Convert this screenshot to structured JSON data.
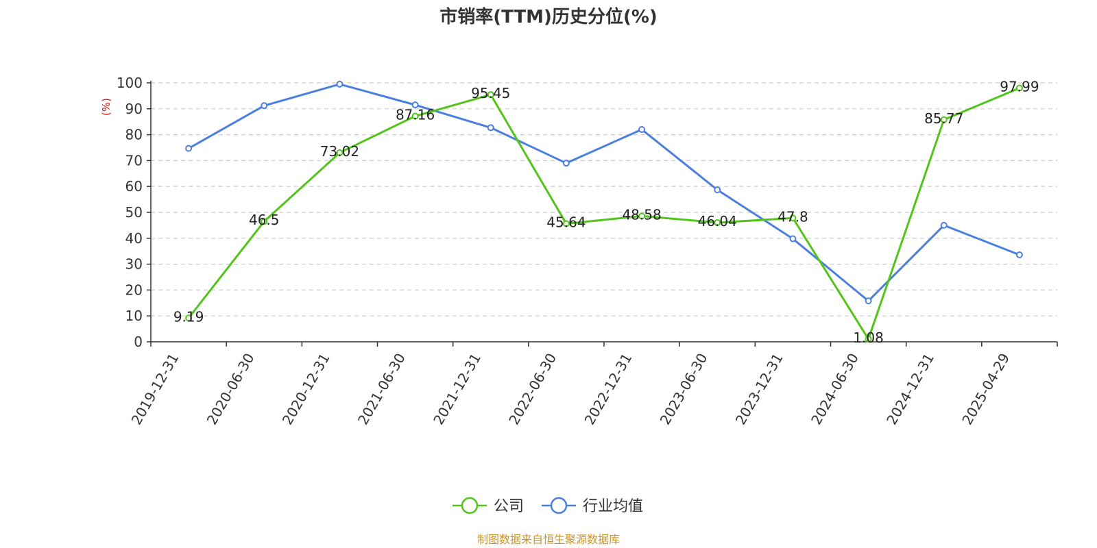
{
  "chart_data": {
    "type": "line",
    "title": "市销率(TTM)历史分位(%)",
    "ylabel": "(%)",
    "ylim": [
      0,
      100
    ],
    "yticks": [
      0,
      10,
      20,
      30,
      40,
      50,
      60,
      70,
      80,
      90,
      100
    ],
    "grid": true,
    "legend_position": "bottom-center",
    "categories": [
      "2019-12-31",
      "2020-06-30",
      "2020-12-31",
      "2021-06-30",
      "2021-12-31",
      "2022-06-30",
      "2022-12-31",
      "2023-06-30",
      "2023-12-31",
      "2024-06-30",
      "2024-12-31",
      "2025-04-29"
    ],
    "series": [
      {
        "name": "公司",
        "color": "#52c41a",
        "values": [
          9.19,
          46.5,
          73.02,
          87.16,
          95.45,
          45.64,
          48.58,
          46.04,
          47.8,
          1.08,
          85.77,
          97.99
        ],
        "labels": [
          "9.19",
          "46.5",
          "73.02",
          "87.16",
          "95.45",
          "45.64",
          "48.58",
          "46.04",
          "47.8",
          "1.08",
          "85.77",
          "97.99"
        ]
      },
      {
        "name": "行业均值",
        "color": "#4a7fe0",
        "values": [
          74.7,
          91.2,
          99.5,
          91.5,
          82.7,
          69,
          82,
          58.7,
          39.8,
          15.8,
          45,
          33.6
        ]
      }
    ],
    "source": "制图数据来自恒生聚源数据库",
    "ylabel_color": "#e01010",
    "source_color": "#c8952a"
  }
}
